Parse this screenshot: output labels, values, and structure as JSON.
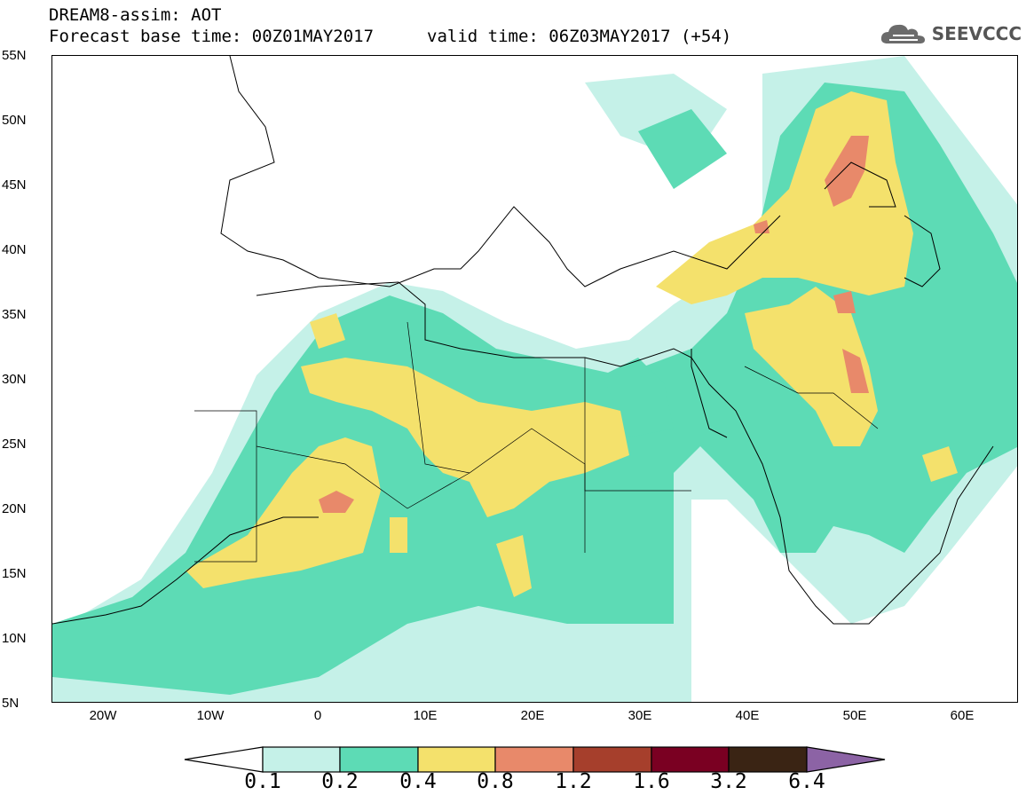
{
  "header": {
    "line1": "DREAM8-assim: AOT",
    "base_time": "Forecast base time: 00Z01MAY2017",
    "valid_time": "valid time: 06Z03MAY2017 (+54)"
  },
  "logo": {
    "text": "SEEVCCC",
    "icon": "cloud-icon"
  },
  "axes": {
    "lat_labels": [
      "55N",
      "50N",
      "45N",
      "40N",
      "35N",
      "30N",
      "25N",
      "20N",
      "15N",
      "10N",
      "5N"
    ],
    "lon_labels": [
      "20W",
      "10W",
      "0",
      "10E",
      "20E",
      "30E",
      "40E",
      "50E",
      "60E"
    ],
    "lat_range": [
      5,
      55
    ],
    "lon_range": [
      -25,
      65
    ]
  },
  "colorbar": {
    "levels": [
      "0.1",
      "0.2",
      "0.4",
      "0.8",
      "1.2",
      "1.6",
      "3.2",
      "6.4"
    ],
    "colors": {
      "under": "#ffffff",
      "c01_02": "#c5f1e8",
      "c02_04": "#5ddbb5",
      "c04_08": "#f4e16c",
      "c08_12": "#e8896a",
      "c12_16": "#a63f2c",
      "c16_32": "#7a0022",
      "c32_64": "#3a2414",
      "over": "#8c63a5"
    }
  }
}
